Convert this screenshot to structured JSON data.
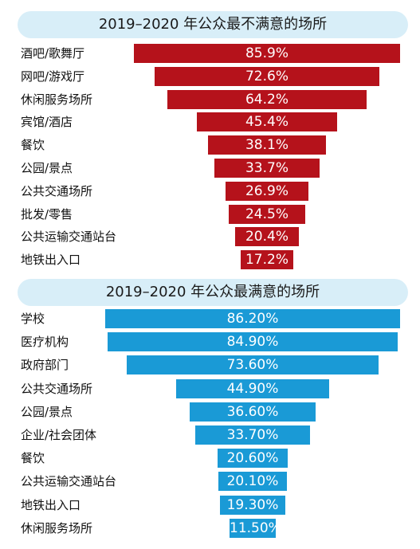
{
  "colors": {
    "red_bar": "#b5121b",
    "blue_bar": "#1a9ad6",
    "title_bg": "#d8eef8"
  },
  "chart_data": [
    {
      "type": "bar",
      "orientation": "horizontal",
      "layout": "centered-funnel",
      "title": "2019–2020 年公众最不满意的场所",
      "categories": [
        "酒吧/歌舞厅",
        "网吧/游戏厅",
        "休闲服务场所",
        "宾馆/酒店",
        "餐饮",
        "公园/景点",
        "公共交通场所",
        "批发/零售",
        "公共运输交通站台",
        "地铁出入口"
      ],
      "values": [
        85.9,
        72.6,
        64.2,
        45.4,
        38.1,
        33.7,
        26.9,
        24.5,
        20.4,
        17.2
      ],
      "labels": [
        "85.9%",
        "72.6%",
        "64.2%",
        "45.4%",
        "38.1%",
        "33.7%",
        "26.9%",
        "24.5%",
        "20.4%",
        "17.2%"
      ],
      "unit": "%"
    },
    {
      "type": "bar",
      "orientation": "horizontal",
      "layout": "centered-funnel",
      "title": "2019–2020 年公众最满意的场所",
      "categories": [
        "学校",
        "医疗机构",
        "政府部门",
        "公共交通场所",
        "公园/景点",
        "企业/社会团体",
        "餐饮",
        "公共运输交通站台",
        "地铁出入口",
        "休闲服务场所"
      ],
      "values": [
        86.2,
        84.9,
        73.6,
        44.9,
        36.6,
        33.7,
        20.6,
        20.1,
        19.3,
        11.5
      ],
      "labels": [
        "86.20%",
        "84.90%",
        "73.60%",
        "44.90%",
        "36.60%",
        "33.70%",
        "20.60%",
        "20.10%",
        "19.30%",
        "11.50%"
      ],
      "unit": "%"
    }
  ]
}
